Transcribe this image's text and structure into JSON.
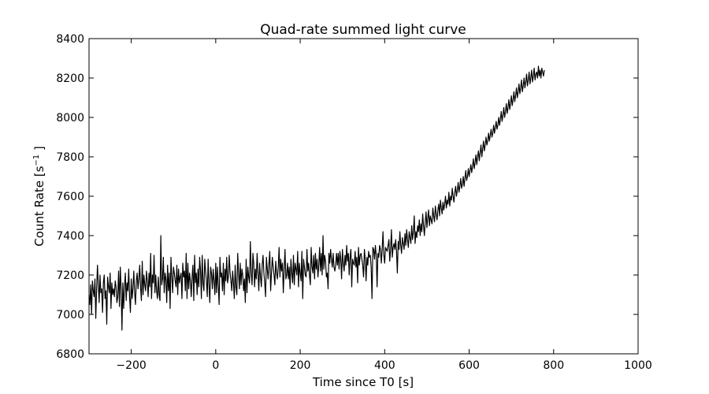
{
  "chart_data": {
    "type": "line",
    "title": "Quad-rate summed light curve",
    "xlabel": "Time since T0 [s]",
    "ylabel_main": "Count Rate [s",
    "ylabel_sup": "−1",
    "ylabel_end": " ]",
    "xlim": [
      -300,
      1000
    ],
    "ylim": [
      6800,
      8400
    ],
    "xticks": [
      -200,
      0,
      200,
      400,
      600,
      800,
      1000
    ],
    "xtick_labels": [
      "−200",
      "0",
      "200",
      "400",
      "600",
      "800",
      "1000"
    ],
    "yticks": [
      6800,
      7000,
      7200,
      7400,
      7600,
      7800,
      8000,
      8200,
      8400
    ],
    "ytick_labels": [
      "6800",
      "7000",
      "7200",
      "7400",
      "7600",
      "7800",
      "8000",
      "8200",
      "8400"
    ],
    "grid": false,
    "line_color": "#000000",
    "series": [
      {
        "x_start": -300,
        "x_step": 2,
        "values": [
          7100,
          7050,
          7150,
          7000,
          7170,
          7120,
          7090,
          7180,
          6980,
          7130,
          7250,
          7150,
          7060,
          7200,
          7110,
          7130,
          7010,
          7160,
          7200,
          7080,
          7120,
          6950,
          7190,
          7140,
          7110,
          7210,
          7030,
          7160,
          7100,
          7130,
          7090,
          7170,
          7140,
          7060,
          7090,
          7220,
          7040,
          7240,
          7130,
          6920,
          7160,
          7030,
          7140,
          7210,
          7070,
          7160,
          7120,
          7230,
          7090,
          7010,
          7180,
          7080,
          7130,
          7220,
          7110,
          7050,
          7170,
          7210,
          7130,
          7180,
          7250,
          7140,
          7070,
          7270,
          7100,
          7200,
          7150,
          7120,
          7220,
          7170,
          7090,
          7210,
          7140,
          7310,
          7080,
          7200,
          7160,
          7300,
          7110,
          7200,
          7120,
          7080,
          7190,
          7100,
          7070,
          7400,
          7150,
          7180,
          7290,
          7110,
          7210,
          7180,
          7060,
          7250,
          7120,
          7210,
          7030,
          7290,
          7190,
          7110,
          7240,
          7210,
          7170,
          7140,
          7250,
          7100,
          7230,
          7160,
          7190,
          7210,
          7080,
          7260,
          7190,
          7220,
          7120,
          7310,
          7080,
          7260,
          7130,
          7210,
          7170,
          7090,
          7190,
          7250,
          7070,
          7300,
          7160,
          7210,
          7100,
          7230,
          7140,
          7290,
          7220,
          7080,
          7300,
          7160,
          7120,
          7280,
          7220,
          7170,
          7090,
          7280,
          7150,
          7060,
          7240,
          7210,
          7130,
          7230,
          7170,
          7100,
          7260,
          7110,
          7240,
          7150,
          7050,
          7290,
          7190,
          7210,
          7120,
          7260,
          7100,
          7230,
          7170,
          7290,
          7160,
          7190,
          7300,
          7210,
          7170,
          7120,
          7220,
          7160,
          7080,
          7250,
          7140,
          7100,
          7310,
          7210,
          7130,
          7260,
          7150,
          7230,
          7200,
          7120,
          7180,
          7060,
          7280,
          7110,
          7240,
          7190,
          7160,
          7370,
          7210,
          7150,
          7310,
          7260,
          7140,
          7230,
          7180,
          7310,
          7210,
          7120,
          7260,
          7190,
          7140,
          7250,
          7300,
          7210,
          7160,
          7090,
          7290,
          7230,
          7180,
          7260,
          7320,
          7120,
          7210,
          7290,
          7240,
          7200,
          7150,
          7270,
          7210,
          7180,
          7240,
          7340,
          7190,
          7280,
          7220,
          7260,
          7110,
          7230,
          7330,
          7180,
          7200,
          7260,
          7180,
          7240,
          7130,
          7280,
          7210,
          7160,
          7300,
          7150,
          7260,
          7230,
          7200,
          7320,
          7140,
          7260,
          7210,
          7170,
          7320,
          7080,
          7280,
          7240,
          7200,
          7190,
          7330,
          7220,
          7260,
          7200,
          7150,
          7340,
          7240,
          7210,
          7300,
          7180,
          7310,
          7230,
          7280,
          7190,
          7250,
          7340,
          7220,
          7310,
          7200,
          7400,
          7230,
          7300,
          7270,
          7190,
          7210,
          7130,
          7310,
          7260,
          7330,
          7280,
          7240,
          7310,
          7240,
          7220,
          7250,
          7310,
          7250,
          7310,
          7230,
          7320,
          7280,
          7180,
          7330,
          7260,
          7220,
          7300,
          7250,
          7350,
          7270,
          7310,
          7200,
          7290,
          7330,
          7140,
          7280,
          7260,
          7250,
          7320,
          7240,
          7290,
          7160,
          7340,
          7250,
          7300,
          7310,
          7280,
          7250,
          7190,
          7330,
          7280,
          7170,
          7290,
          7250,
          7320,
          7290,
          7300,
          7240,
          7080,
          7340,
          7330,
          7280,
          7350,
          7300,
          7140,
          7310,
          7290,
          7350,
          7330,
          7260,
          7330,
          7420,
          7300,
          7260,
          7340,
          7330,
          7320,
          7350,
          7380,
          7270,
          7330,
          7430,
          7290,
          7340,
          7360,
          7330,
          7380,
          7320,
          7210,
          7370,
          7330,
          7420,
          7350,
          7310,
          7390,
          7360,
          7330,
          7410,
          7350,
          7430,
          7380,
          7340,
          7420,
          7390,
          7360,
          7450,
          7380,
          7420,
          7500,
          7360,
          7420,
          7390,
          7450,
          7420,
          7480,
          7400,
          7460,
          7420,
          7510,
          7450,
          7400,
          7470,
          7520,
          7440,
          7490,
          7530,
          7450,
          7500,
          7480,
          7460,
          7540,
          7500,
          7470,
          7550,
          7510,
          7480,
          7530,
          7560,
          7500,
          7580,
          7540,
          7510,
          7570,
          7530,
          7560,
          7600,
          7540,
          7580,
          7560,
          7620,
          7550,
          7600,
          7580,
          7640,
          7600,
          7570,
          7620,
          7650,
          7600,
          7630,
          7670,
          7620,
          7650,
          7690,
          7640,
          7660,
          7700,
          7650,
          7690,
          7730,
          7680,
          7700,
          7740,
          7700,
          7730,
          7760,
          7720,
          7750,
          7790,
          7740,
          7770,
          7810,
          7760,
          7800,
          7830,
          7780,
          7820,
          7860,
          7800,
          7840,
          7880,
          7830,
          7860,
          7900,
          7860,
          7880,
          7920,
          7880,
          7910,
          7940,
          7900,
          7920,
          7960,
          7920,
          7950,
          7980,
          7940,
          7960,
          8000,
          7960,
          7990,
          8030,
          7980,
          8010,
          8050,
          8000,
          8030,
          8070,
          8020,
          8050,
          8090,
          8040,
          8070,
          8110,
          8060,
          8090,
          8130,
          8080,
          8110,
          8150,
          8100,
          8130,
          8170,
          8120,
          8150,
          8190,
          8130,
          8160,
          8200,
          8150,
          8180,
          8220,
          8160,
          8190,
          8230,
          8170,
          8200,
          8240,
          8180,
          8210,
          8250,
          8190,
          8220,
          8230,
          8200,
          8260,
          8210,
          8240,
          8200,
          8250,
          8230,
          8210,
          8240
        ]
      }
    ]
  }
}
